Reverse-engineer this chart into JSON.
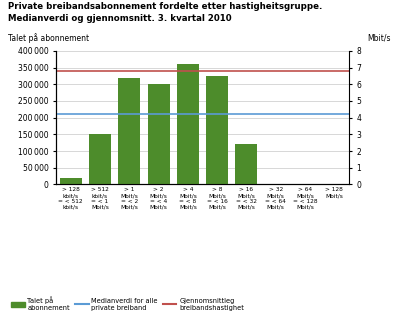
{
  "title_line1": "Private breibandsabonnement fordelte etter hastigheitsgruppe.",
  "title_line2": "Medianverdi og gjennomsnitt. 3. kvartal 2010",
  "ylabel_left": "Talet på abonnement",
  "ylabel_right": "Mbit/s",
  "categories": [
    "> 128\nkbit/s\n= < 512\nkbit/s",
    "> 512\nkbit/s\n= < 1\nMbit/s",
    "> 1\nMbit/s\n= < 2\nMbit/s",
    "> 2\nMbit/s\n= < 4\nMbit/s",
    "> 4\nMbit/s\n= < 8\nMbit/s",
    "> 8\nMbit/s\n= < 16\nMbit/s",
    "> 16\nMbit/s\n= < 32\nMbit/s",
    "> 32\nMbit/s\n= < 64\nMbit/s",
    "> 64\nMbit/s\n= < 128\nMbit/s",
    "> 128\nMbit/s"
  ],
  "values": [
    18000,
    150000,
    320000,
    300000,
    360000,
    325000,
    120000,
    0,
    0,
    0
  ],
  "bar_color": "#4d8c2b",
  "median_value": 210000,
  "mean_mbit": 6.8,
  "median_color": "#5b9bd5",
  "mean_color": "#c0504d",
  "ylim_left": [
    0,
    400000
  ],
  "ylim_right": [
    0,
    8
  ],
  "yticks_left": [
    0,
    50000,
    100000,
    150000,
    200000,
    250000,
    300000,
    350000,
    400000
  ],
  "yticks_right": [
    0,
    1,
    2,
    3,
    4,
    5,
    6,
    7,
    8
  ],
  "legend_entries": [
    "Talet på\nabonnement",
    "Medianverdi for alle\nprivate breiband",
    "Gjennomsnittleg\nbreibandshastighet"
  ],
  "background_color": "#ffffff",
  "grid_color": "#c8c8c8"
}
